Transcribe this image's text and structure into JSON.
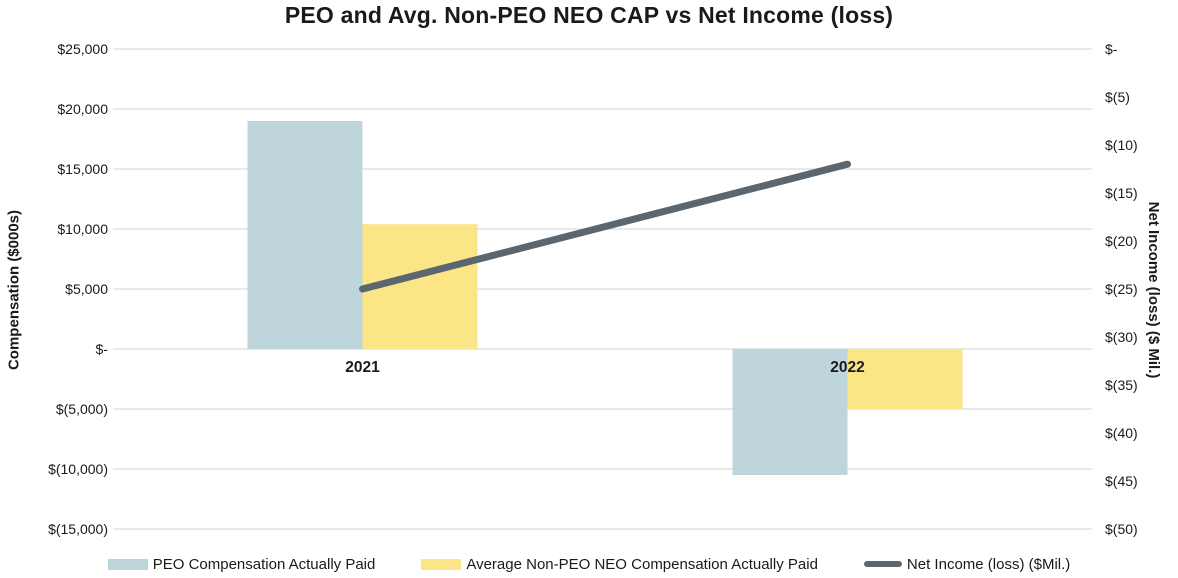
{
  "chart_data": {
    "type": "combo",
    "title": "PEO and Avg. Non-PEO NEO CAP vs Net Income (loss)",
    "categories": [
      "2021",
      "2022"
    ],
    "series": [
      {
        "name": "PEO Compensation Actually Paid",
        "type": "bar",
        "axis": "left",
        "values": [
          19000,
          -10500
        ],
        "color": "#BFD5DC"
      },
      {
        "name": "Average Non-PEO NEO Compensation Actually Paid",
        "type": "bar",
        "axis": "left",
        "values": [
          10400,
          -5000
        ],
        "color": "#FBE587"
      },
      {
        "name": "Net Income (loss) ($Mil.)",
        "type": "line",
        "axis": "right",
        "values": [
          -25,
          -12
        ],
        "color": "#5A6670"
      }
    ],
    "left_axis": {
      "label": "Compensation ($000s)",
      "min": -15000,
      "max": 25000,
      "tick_step": 5000,
      "tick_labels": [
        "$25,000",
        "$20,000",
        "$15,000",
        "$10,000",
        "$5,000",
        "$-",
        "$(5,000)",
        "$(10,000)",
        "$(15,000)"
      ]
    },
    "right_axis": {
      "label": "Net Income (loss) ($ Mil.)",
      "min": -50,
      "max": 0,
      "tick_step": 5,
      "tick_labels": [
        "$-",
        "$(5)",
        "$(10)",
        "$(15)",
        "$(20)",
        "$(25)",
        "$(30)",
        "$(35)",
        "$(40)",
        "$(45)",
        "$(50)"
      ]
    },
    "grid": true,
    "gridline_color": "#E2E2E2",
    "legend_position": "bottom",
    "background_color": "#FFFFFF",
    "text_color": "#1A1A1A"
  }
}
